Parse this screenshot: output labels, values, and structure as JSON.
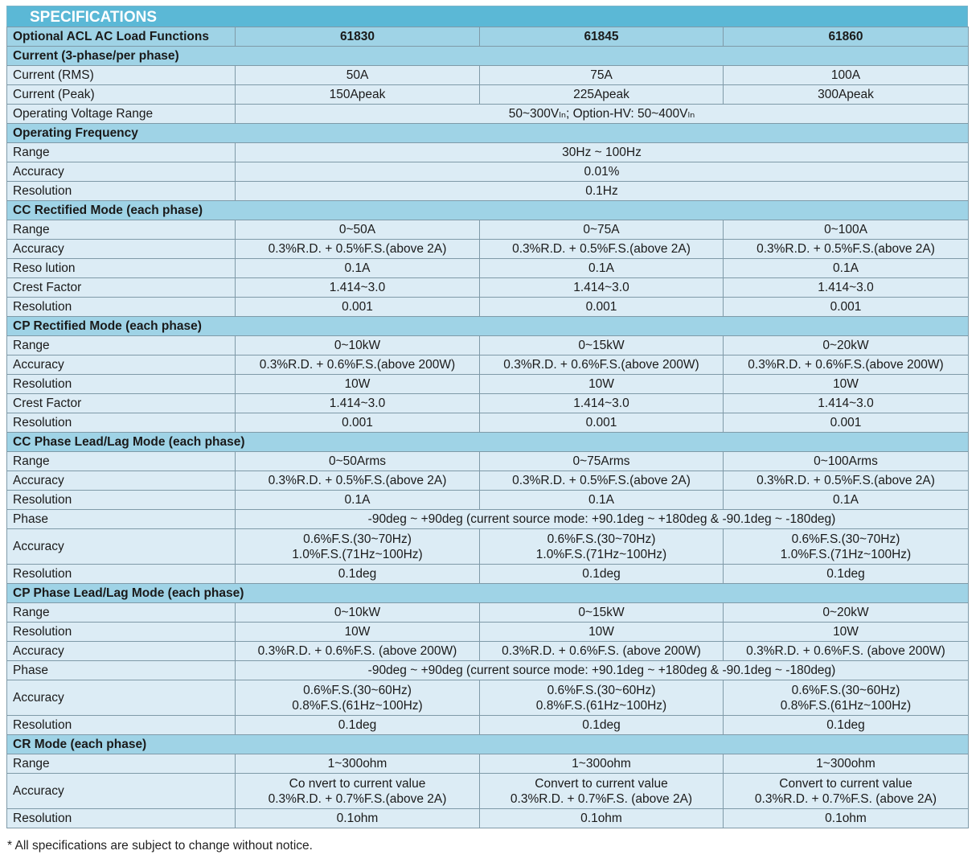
{
  "title": "SPECIFICATIONS",
  "header": {
    "label": "Optional ACL AC Load Functions",
    "models": [
      "61830",
      "61845",
      "61860"
    ]
  },
  "sections": [
    {
      "title": "Current (3-phase/per phase)",
      "rows": [
        {
          "label": "Current (RMS)",
          "values": [
            "50A",
            "75A",
            "100A"
          ]
        },
        {
          "label": "Current (Peak)",
          "values": [
            "150Apeak",
            "225Apeak",
            "300Apeak"
          ]
        },
        {
          "label": "Operating Voltage Range",
          "span": "50~300Vₗₙ; Option-HV: 50~400Vₗₙ"
        }
      ]
    },
    {
      "title": "Operating Frequency",
      "rows": [
        {
          "label": "Range",
          "span": "30Hz ~ 100Hz"
        },
        {
          "label": "Accuracy",
          "span": "0.01%"
        },
        {
          "label": "Resolution",
          "span": "0.1Hz"
        }
      ]
    },
    {
      "title": "CC Rectified Mode (each phase)",
      "rows": [
        {
          "label": "Range",
          "values": [
            "0~50A",
            "0~75A",
            "0~100A"
          ]
        },
        {
          "label": "Accuracy",
          "values": [
            "0.3%R.D. + 0.5%F.S.(above 2A)",
            "0.3%R.D. + 0.5%F.S.(above 2A)",
            "0.3%R.D. + 0.5%F.S.(above 2A)"
          ]
        },
        {
          "label": "Reso lution",
          "values": [
            "0.1A",
            "0.1A",
            "0.1A"
          ]
        },
        {
          "label": "Crest Factor",
          "values": [
            "1.414~3.0",
            "1.414~3.0",
            "1.414~3.0"
          ]
        },
        {
          "label": "Resolution",
          "values": [
            "0.001",
            "0.001",
            "0.001"
          ]
        }
      ]
    },
    {
      "title": "CP Rectified Mode (each phase)",
      "rows": [
        {
          "label": "Range",
          "values": [
            "0~10kW",
            "0~15kW",
            "0~20kW"
          ]
        },
        {
          "label": "Accuracy",
          "values": [
            "0.3%R.D. + 0.6%F.S.(above 200W)",
            "0.3%R.D. + 0.6%F.S.(above 200W)",
            "0.3%R.D. + 0.6%F.S.(above 200W)"
          ]
        },
        {
          "label": "Resolution",
          "values": [
            "10W",
            "10W",
            "10W"
          ]
        },
        {
          "label": "Crest Factor",
          "values": [
            "1.414~3.0",
            "1.414~3.0",
            "1.414~3.0"
          ]
        },
        {
          "label": "Resolution",
          "values": [
            "0.001",
            "0.001",
            "0.001"
          ]
        }
      ]
    },
    {
      "title": "CC Phase Lead/Lag Mode (each phase)",
      "rows": [
        {
          "label": "Range",
          "values": [
            "0~50Arms",
            "0~75Arms",
            "0~100Arms"
          ]
        },
        {
          "label": "Accuracy",
          "values": [
            "0.3%R.D. + 0.5%F.S.(above 2A)",
            "0.3%R.D. + 0.5%F.S.(above 2A)",
            "0.3%R.D. + 0.5%F.S.(above 2A)"
          ]
        },
        {
          "label": "Resolution",
          "values": [
            "0.1A",
            "0.1A",
            "0.1A"
          ]
        },
        {
          "label": "Phase",
          "span": "-90deg ~ +90deg (current source mode: +90.1deg ~ +180deg & -90.1deg ~ -180deg)"
        },
        {
          "label": "Accuracy",
          "values2": [
            [
              "0.6%F.S.(30~70Hz)",
              "1.0%F.S.(71Hz~100Hz)"
            ],
            [
              "0.6%F.S.(30~70Hz)",
              "1.0%F.S.(71Hz~100Hz)"
            ],
            [
              "0.6%F.S.(30~70Hz)",
              "1.0%F.S.(71Hz~100Hz)"
            ]
          ]
        },
        {
          "label": "Resolution",
          "values": [
            "0.1deg",
            "0.1deg",
            "0.1deg"
          ]
        }
      ]
    },
    {
      "title": "CP Phase Lead/Lag Mode (each phase)",
      "rows": [
        {
          "label": "Range",
          "values": [
            "0~10kW",
            "0~15kW",
            "0~20kW"
          ]
        },
        {
          "label": "Resolution",
          "values": [
            "10W",
            "10W",
            "10W"
          ]
        },
        {
          "label": "Accuracy",
          "values": [
            "0.3%R.D. + 0.6%F.S. (above 200W)",
            "0.3%R.D. + 0.6%F.S. (above 200W)",
            "0.3%R.D. + 0.6%F.S. (above 200W)"
          ]
        },
        {
          "label": "Phase",
          "span": "-90deg ~ +90deg (current source mode: +90.1deg ~ +180deg & -90.1deg ~ -180deg)"
        },
        {
          "label": "Accuracy",
          "values2": [
            [
              "0.6%F.S.(30~60Hz)",
              "0.8%F.S.(61Hz~100Hz)"
            ],
            [
              "0.6%F.S.(30~60Hz)",
              "0.8%F.S.(61Hz~100Hz)"
            ],
            [
              "0.6%F.S.(30~60Hz)",
              "0.8%F.S.(61Hz~100Hz)"
            ]
          ]
        },
        {
          "label": "Resolution",
          "values": [
            "0.1deg",
            "0.1deg",
            "0.1deg"
          ]
        }
      ]
    },
    {
      "title": "CR Mode (each phase)",
      "rows": [
        {
          "label": "Range",
          "values": [
            "1~300ohm",
            "1~300ohm",
            "1~300ohm"
          ]
        },
        {
          "label": "Accuracy",
          "values2": [
            [
              "Co nvert to current value",
              "0.3%R.D. + 0.7%F.S.(above 2A)"
            ],
            [
              "Convert to current value",
              "0.3%R.D. + 0.7%F.S. (above 2A)"
            ],
            [
              "Convert to current value",
              "0.3%R.D. + 0.7%F.S. (above 2A)"
            ]
          ]
        },
        {
          "label": "Resolution",
          "values": [
            "0.1ohm",
            "0.1ohm",
            "0.1ohm"
          ]
        }
      ]
    }
  ],
  "footnote": "* All specifications are subject to change without notice."
}
